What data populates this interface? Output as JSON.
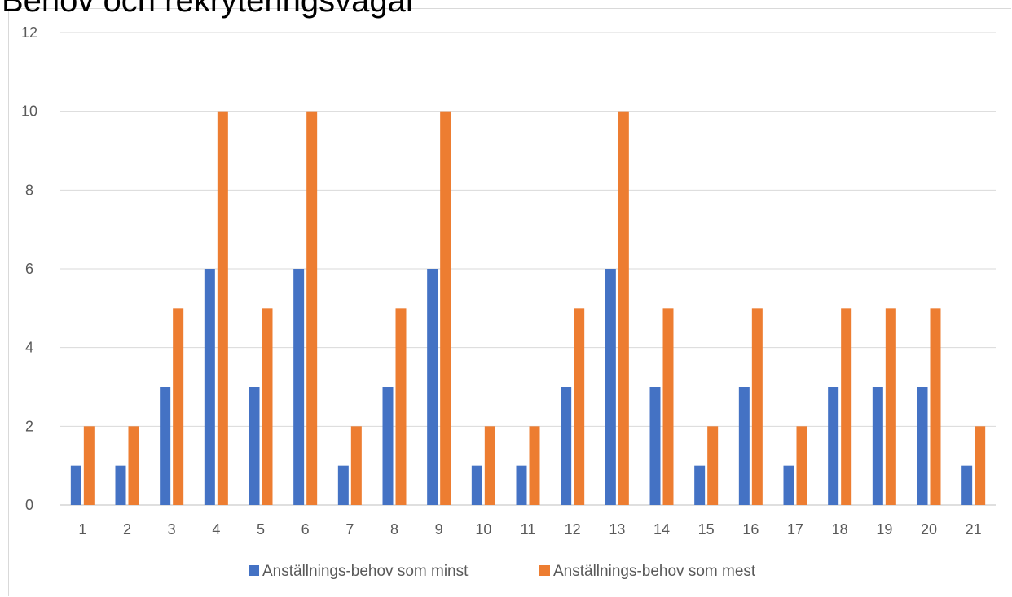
{
  "chart_data": {
    "type": "bar",
    "title": "Behov och rekryteringsvägar",
    "xlabel": "",
    "ylabel": "",
    "categories": [
      "1",
      "2",
      "3",
      "4",
      "5",
      "6",
      "7",
      "8",
      "9",
      "10",
      "11",
      "12",
      "13",
      "14",
      "15",
      "16",
      "17",
      "18",
      "19",
      "20",
      "21"
    ],
    "series": [
      {
        "name": "Anställnings-behov som minst",
        "color": "#4472c4",
        "values": [
          1,
          1,
          3,
          6,
          3,
          6,
          1,
          3,
          6,
          1,
          1,
          3,
          6,
          3,
          1,
          3,
          1,
          3,
          3,
          3,
          1
        ]
      },
      {
        "name": "Anställnings-behov som mest",
        "color": "#ed7d31",
        "values": [
          2,
          2,
          5,
          10,
          5,
          10,
          2,
          5,
          10,
          2,
          2,
          5,
          10,
          5,
          2,
          5,
          2,
          5,
          5,
          5,
          2
        ]
      }
    ],
    "ylim": [
      0,
      12
    ],
    "yticks": [
      "0",
      "2",
      "4",
      "6",
      "8",
      "10",
      "12"
    ],
    "grid": true,
    "legend_position": "bottom"
  }
}
